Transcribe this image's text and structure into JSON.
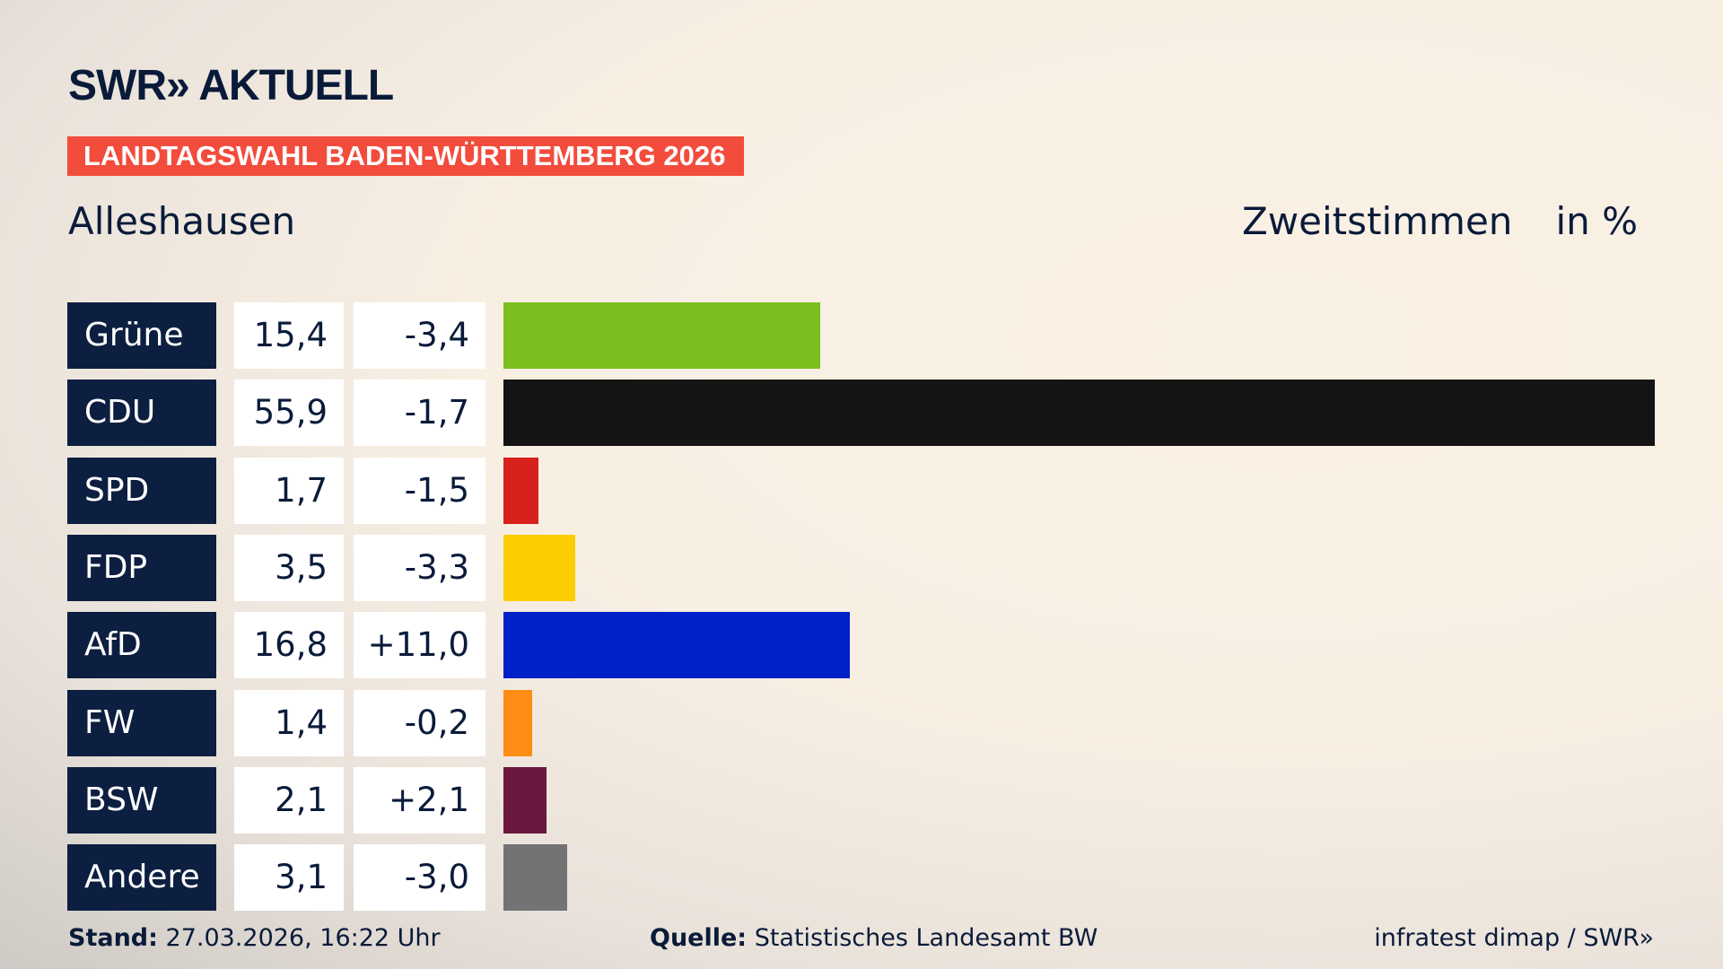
{
  "header": {
    "logo": "SWR» AKTUELL",
    "banner": "LANDTAGSWAHL BADEN-WÜRTTEMBERG 2026",
    "place": "Alleshausen",
    "metric": "Zweitstimmen",
    "unit": "in %"
  },
  "chart_data": {
    "type": "bar",
    "orientation": "horizontal",
    "categories": [
      "Grüne",
      "CDU",
      "SPD",
      "FDP",
      "AfD",
      "FW",
      "BSW",
      "Andere"
    ],
    "values": [
      15.4,
      55.9,
      1.7,
      3.5,
      16.8,
      1.4,
      2.1,
      3.1
    ],
    "value_labels": [
      "15,4",
      "55,9",
      "1,7",
      "3,5",
      "16,8",
      "1,4",
      "2,1",
      "3,1"
    ],
    "diff_labels": [
      "-3,4",
      "-1,7",
      "-1,5",
      "-3,3",
      "+11,0",
      "-0,2",
      "+2,1",
      "-3,0"
    ],
    "diffs": [
      -3.4,
      -1.7,
      -1.5,
      -3.3,
      11.0,
      -0.2,
      2.1,
      -3.0
    ],
    "colors": [
      "#7abf1e",
      "#141414",
      "#d8201c",
      "#fccd00",
      "#0021c8",
      "#ff8c14",
      "#6a183f",
      "#737373"
    ],
    "xlim": [
      0,
      55.9
    ],
    "grid": false
  },
  "footer": {
    "stand_label": "Stand:",
    "stand_value": "27.03.2026, 16:22 Uhr",
    "source_label": "Quelle:",
    "source_value": "Statistisches Landesamt BW",
    "credit": "infratest dimap / SWR»"
  }
}
